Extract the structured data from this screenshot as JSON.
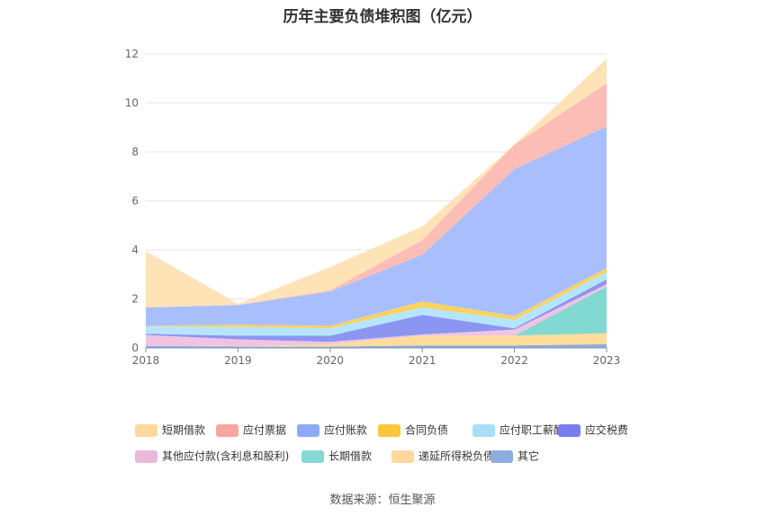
{
  "chart_data": {
    "type": "area",
    "stacked": true,
    "title": "历年主要负债堆积图（亿元）",
    "x": [
      "2018",
      "2019",
      "2020",
      "2021",
      "2022",
      "2023"
    ],
    "ylim": [
      0,
      12
    ],
    "yticks": [
      "0",
      "2",
      "4",
      "6",
      "8",
      "10",
      "12"
    ],
    "grid": true,
    "legend_position": "bottom",
    "series": [
      {
        "name": "其它",
        "color": "#91acd8",
        "values": [
          0.08,
          0.05,
          0.05,
          0.1,
          0.1,
          0.15
        ]
      },
      {
        "name": "递延所得税负债",
        "color": "#fedd9a",
        "values": [
          0.0,
          0.0,
          0.1,
          0.4,
          0.4,
          0.45
        ]
      },
      {
        "name": "长期借款",
        "color": "#82d9d2",
        "values": [
          0.0,
          0.0,
          0.0,
          0.0,
          0.0,
          1.9
        ]
      },
      {
        "name": "其他应付款(含利息和股利)",
        "color": "#f0c4e0",
        "values": [
          0.45,
          0.3,
          0.1,
          0.05,
          0.25,
          0.1
        ]
      },
      {
        "name": "应交税费",
        "color": "#8d95f2",
        "values": [
          0.05,
          0.15,
          0.25,
          0.8,
          0.05,
          0.2
        ]
      },
      {
        "name": "应付职工薪酬",
        "color": "#b5e5fb",
        "values": [
          0.3,
          0.35,
          0.3,
          0.3,
          0.35,
          0.3
        ]
      },
      {
        "name": "合同负债",
        "color": "#fdd25f",
        "values": [
          0.02,
          0.1,
          0.1,
          0.25,
          0.15,
          0.15
        ]
      },
      {
        "name": "应付账款",
        "color": "#a9bffd",
        "values": [
          0.75,
          0.8,
          1.4,
          1.9,
          6.0,
          5.8
        ]
      },
      {
        "name": "应付票据",
        "color": "#fcbdb6",
        "values": [
          0.0,
          0.0,
          0.05,
          0.6,
          1.0,
          1.75
        ]
      },
      {
        "name": "短期借款",
        "color": "#fee3b7",
        "values": [
          2.3,
          0.05,
          0.95,
          0.55,
          0.0,
          1.0
        ]
      }
    ],
    "legend": [
      {
        "name": "短期借款",
        "color": "#fed89d"
      },
      {
        "name": "应付票据",
        "color": "#f9a69c"
      },
      {
        "name": "应付账款",
        "color": "#8ca9fa"
      },
      {
        "name": "合同负债",
        "color": "#fbc63a"
      },
      {
        "name": "应付职工薪酬",
        "color": "#a8defa"
      },
      {
        "name": "应交税费",
        "color": "#7a7df0"
      },
      {
        "name": "其他应付款(含利息和股利)",
        "color": "#e9b9d9"
      },
      {
        "name": "长期借款",
        "color": "#85d8d3"
      },
      {
        "name": "递延所得税负债",
        "color": "#fed89d"
      },
      {
        "name": "其它",
        "color": "#8eaee0"
      }
    ],
    "source": "数据来源：恒生聚源"
  }
}
